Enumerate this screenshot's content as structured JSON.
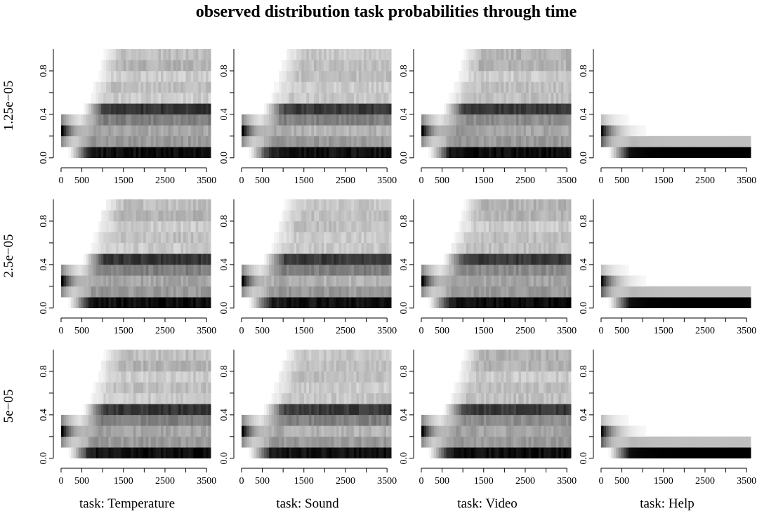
{
  "chart_data": {
    "type": "heatmap",
    "title": "observed distribution task probabilities through time",
    "row_labels": [
      "1.25e−05",
      "2.5e−05",
      "5e−05"
    ],
    "column_labels": [
      "task: Temperature",
      "task: Sound",
      "task: Video",
      "task: Help"
    ],
    "x_ticks": [
      "0",
      "500",
      "1500",
      "2500",
      "3500"
    ],
    "x_tick_values": [
      0,
      500,
      1500,
      2500,
      3500
    ],
    "x_minor_ticks": [
      1000,
      2000,
      3000
    ],
    "xlim": [
      -50,
      3700
    ],
    "y_ticks": [
      "0.0",
      "0.4",
      "0.8"
    ],
    "y_tick_values": [
      0.0,
      0.4,
      0.8
    ],
    "y_minor_ticks": [
      0.2,
      0.6
    ],
    "ylim": [
      -0.04,
      1.0
    ],
    "colors": {
      "low": "#ffffff",
      "high": "#000000",
      "axis": "#000000"
    },
    "bins": [
      0.0,
      0.1,
      0.2,
      0.3,
      0.4,
      0.5,
      0.6,
      0.7,
      0.8,
      0.9
    ],
    "typical_steady_intensity": {
      "Temperature": [
        0.95,
        0.4,
        0.35,
        0.5,
        0.8,
        0.2,
        0.25,
        0.2,
        0.3,
        0.25
      ],
      "Sound": [
        0.93,
        0.4,
        0.3,
        0.5,
        0.78,
        0.22,
        0.2,
        0.25,
        0.25,
        0.22
      ],
      "Video": [
        0.95,
        0.4,
        0.35,
        0.45,
        0.78,
        0.25,
        0.25,
        0.2,
        0.3,
        0.3
      ],
      "Help": [
        1.0,
        0.25,
        0.0,
        0.0,
        0.0,
        0.0,
        0.0,
        0.0,
        0.0,
        0.0
      ]
    }
  }
}
